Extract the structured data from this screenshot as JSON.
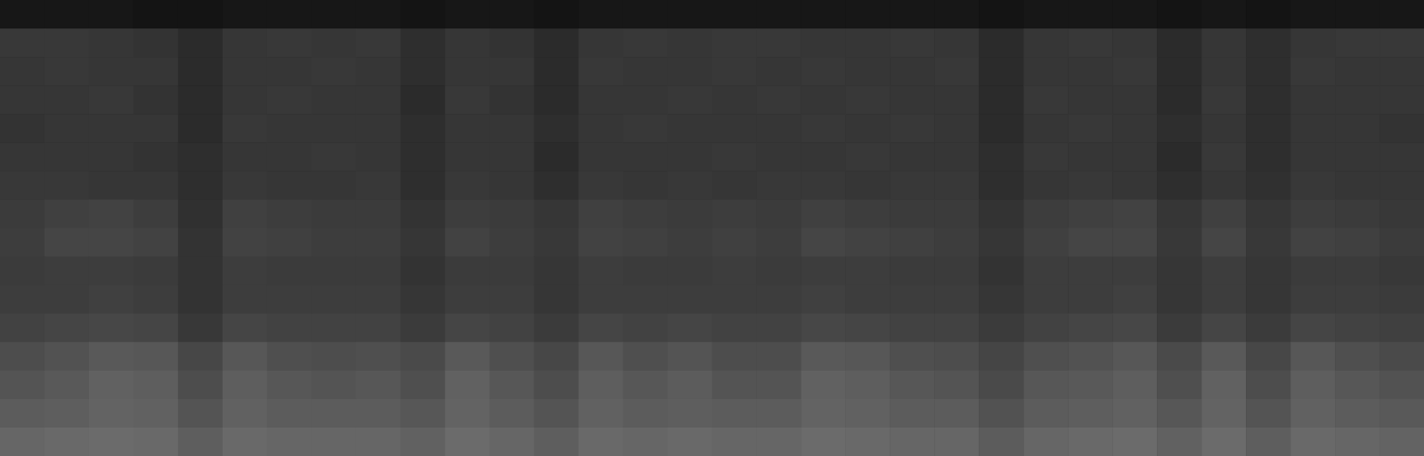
{
  "chart_data": {
    "type": "heatmap",
    "tick_labels": false,
    "zlim": [
      0,
      100
    ],
    "cells": [
      [
        9,
        9,
        9,
        8,
        8,
        9,
        9,
        9,
        9,
        8,
        9,
        9,
        8,
        9,
        9,
        9,
        9,
        9,
        9,
        9,
        9,
        9,
        8,
        9,
        9,
        9,
        8,
        9,
        8,
        9,
        9,
        9
      ],
      [
        22,
        22,
        21,
        20,
        17,
        21,
        22,
        21,
        22,
        18,
        21,
        20,
        17,
        21,
        22,
        21,
        22,
        22,
        21,
        21,
        22,
        21,
        17,
        21,
        22,
        21,
        17,
        21,
        18,
        21,
        22,
        22
      ],
      [
        21,
        22,
        21,
        21,
        17,
        21,
        21,
        22,
        21,
        18,
        21,
        21,
        17,
        22,
        21,
        21,
        22,
        21,
        22,
        21,
        21,
        22,
        17,
        21,
        21,
        22,
        17,
        21,
        18,
        22,
        21,
        21
      ],
      [
        21,
        21,
        22,
        20,
        17,
        21,
        22,
        21,
        21,
        17,
        22,
        20,
        17,
        21,
        21,
        22,
        21,
        22,
        21,
        22,
        21,
        21,
        17,
        22,
        21,
        21,
        17,
        22,
        18,
        21,
        21,
        21
      ],
      [
        20,
        21,
        21,
        21,
        17,
        22,
        21,
        21,
        21,
        18,
        21,
        21,
        18,
        21,
        22,
        21,
        21,
        21,
        22,
        21,
        22,
        21,
        17,
        21,
        22,
        21,
        18,
        21,
        18,
        21,
        21,
        20
      ],
      [
        21,
        21,
        21,
        20,
        18,
        21,
        21,
        22,
        21,
        18,
        21,
        21,
        17,
        21,
        21,
        21,
        22,
        21,
        21,
        22,
        21,
        21,
        18,
        22,
        21,
        21,
        17,
        22,
        18,
        21,
        21,
        21
      ],
      [
        22,
        22,
        21,
        21,
        18,
        22,
        21,
        21,
        22,
        18,
        22,
        21,
        18,
        22,
        21,
        22,
        21,
        22,
        22,
        21,
        22,
        22,
        18,
        21,
        22,
        21,
        18,
        21,
        19,
        22,
        21,
        21
      ],
      [
        23,
        25,
        26,
        24,
        19,
        25,
        24,
        23,
        23,
        20,
        24,
        23,
        21,
        25,
        24,
        23,
        24,
        23,
        25,
        24,
        23,
        23,
        20,
        24,
        25,
        26,
        21,
        25,
        21,
        24,
        23,
        22
      ],
      [
        24,
        27,
        27,
        26,
        20,
        26,
        25,
        24,
        24,
        21,
        26,
        24,
        22,
        26,
        25,
        24,
        25,
        24,
        27,
        26,
        25,
        24,
        21,
        25,
        27,
        27,
        22,
        27,
        22,
        26,
        25,
        23
      ],
      [
        23,
        24,
        24,
        23,
        20,
        24,
        23,
        23,
        23,
        20,
        23,
        23,
        21,
        24,
        23,
        23,
        24,
        23,
        24,
        24,
        23,
        23,
        20,
        24,
        24,
        24,
        21,
        24,
        21,
        23,
        23,
        22
      ],
      [
        24,
        24,
        25,
        24,
        20,
        24,
        24,
        24,
        24,
        21,
        24,
        24,
        21,
        24,
        24,
        24,
        24,
        24,
        25,
        24,
        24,
        24,
        21,
        24,
        24,
        25,
        21,
        24,
        21,
        24,
        24,
        23
      ],
      [
        26,
        27,
        28,
        27,
        22,
        27,
        26,
        26,
        26,
        23,
        27,
        26,
        23,
        27,
        26,
        27,
        26,
        26,
        28,
        27,
        26,
        26,
        23,
        26,
        27,
        28,
        23,
        27,
        23,
        27,
        26,
        25
      ],
      [
        30,
        32,
        35,
        34,
        28,
        34,
        31,
        30,
        31,
        29,
        35,
        31,
        28,
        34,
        31,
        33,
        30,
        30,
        35,
        34,
        31,
        30,
        27,
        31,
        32,
        34,
        29,
        35,
        28,
        34,
        31,
        29
      ],
      [
        33,
        35,
        38,
        37,
        30,
        37,
        34,
        33,
        34,
        31,
        38,
        34,
        30,
        37,
        34,
        36,
        33,
        33,
        38,
        37,
        34,
        33,
        29,
        34,
        35,
        37,
        31,
        38,
        30,
        37,
        34,
        32
      ],
      [
        36,
        37,
        39,
        38,
        33,
        38,
        36,
        36,
        36,
        34,
        39,
        36,
        33,
        38,
        36,
        37,
        36,
        36,
        39,
        38,
        36,
        36,
        32,
        36,
        37,
        38,
        34,
        39,
        33,
        38,
        36,
        35
      ],
      [
        40,
        41,
        42,
        41,
        37,
        41,
        40,
        40,
        40,
        38,
        42,
        40,
        37,
        41,
        40,
        41,
        40,
        40,
        42,
        41,
        40,
        40,
        36,
        40,
        41,
        42,
        38,
        42,
        37,
        41,
        40,
        39
      ]
    ]
  }
}
